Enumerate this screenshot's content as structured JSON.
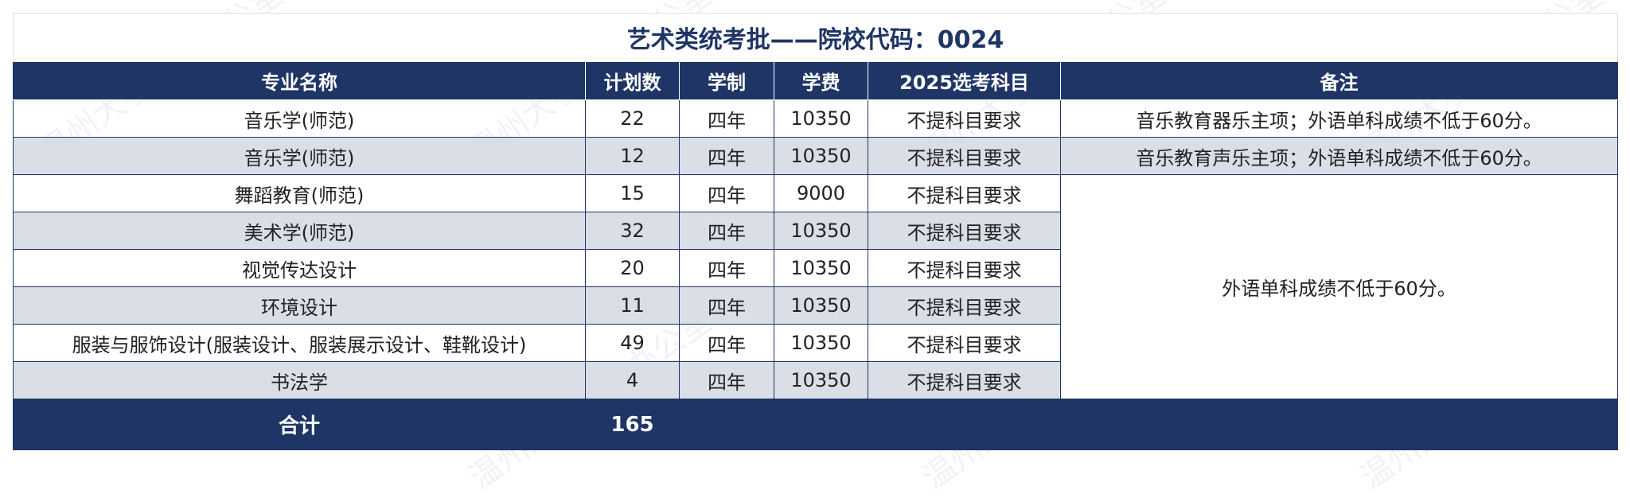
{
  "title": "艺术类统考批——院校代码：0024",
  "watermark": "温州大学招生办公室",
  "colors": {
    "header_bg": "#1f3566",
    "alt_row": "#d9dee7"
  },
  "columns": [
    "专业名称",
    "计划数",
    "学制",
    "学费",
    "2025选考科目",
    "备注"
  ],
  "rows": [
    {
      "name": "音乐学(师范)",
      "plan": "22",
      "years": "四年",
      "fee": "10350",
      "subject": "不提科目要求"
    },
    {
      "name": "音乐学(师范)",
      "plan": "12",
      "years": "四年",
      "fee": "10350",
      "subject": "不提科目要求"
    },
    {
      "name": "舞蹈教育(师范)",
      "plan": "15",
      "years": "四年",
      "fee": "9000",
      "subject": "不提科目要求"
    },
    {
      "name": "美术学(师范)",
      "plan": "32",
      "years": "四年",
      "fee": "10350",
      "subject": "不提科目要求"
    },
    {
      "name": "视觉传达设计",
      "plan": "20",
      "years": "四年",
      "fee": "10350",
      "subject": "不提科目要求"
    },
    {
      "name": "环境设计",
      "plan": "11",
      "years": "四年",
      "fee": "10350",
      "subject": "不提科目要求"
    },
    {
      "name": "服装与服饰设计(服装设计、服装展示设计、鞋靴设计)",
      "plan": "49",
      "years": "四年",
      "fee": "10350",
      "subject": "不提科目要求"
    },
    {
      "name": "书法学",
      "plan": "4",
      "years": "四年",
      "fee": "10350",
      "subject": "不提科目要求"
    }
  ],
  "notes": [
    "音乐教育器乐主项；外语单科成绩不低于60分。",
    "音乐教育声乐主项；外语单科成绩不低于60分。",
    "外语单科成绩不低于60分。"
  ],
  "total": {
    "label": "合计",
    "value": "165"
  }
}
